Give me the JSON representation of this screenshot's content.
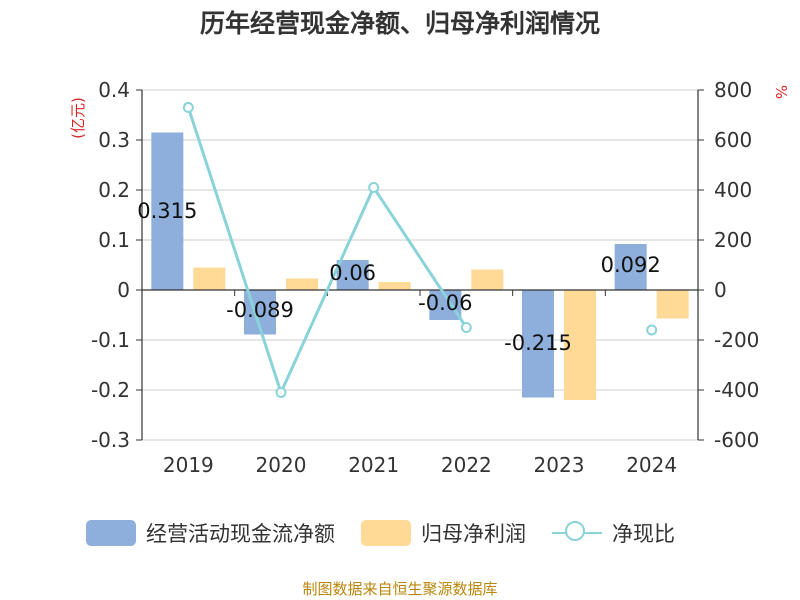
{
  "title": "历年经营现金净额、归母净利润情况",
  "source": "制图数据来自恒生聚源数据库",
  "chart_data": {
    "type": "bar",
    "categories": [
      "2019",
      "2020",
      "2021",
      "2022",
      "2023",
      "2024"
    ],
    "series": [
      {
        "name": "经营活动现金流净额",
        "kind": "bar",
        "axis": "left",
        "color": "#8eaedb",
        "values": [
          0.315,
          -0.089,
          0.06,
          -0.06,
          -0.215,
          0.092
        ],
        "labels": [
          "0.315",
          "-0.089",
          "0.06",
          "-0.06",
          "-0.215",
          "0.092"
        ]
      },
      {
        "name": "归母净利润",
        "kind": "bar",
        "axis": "left",
        "color": "#ffd996",
        "values": [
          0.045,
          0.023,
          0.016,
          0.041,
          -0.22,
          -0.057
        ]
      },
      {
        "name": "净现比",
        "kind": "line",
        "axis": "right",
        "color": "#89d3d9",
        "values": [
          730,
          -410,
          410,
          -150,
          null,
          -160
        ]
      }
    ],
    "left_axis": {
      "unit": "(亿元)",
      "ylim": [
        -0.3,
        0.4
      ],
      "ticks": [
        "-0.3",
        "-0.2",
        "-0.1",
        "0",
        "0.1",
        "0.2",
        "0.3",
        "0.4"
      ]
    },
    "right_axis": {
      "unit": "%",
      "ylim": [
        -600,
        800
      ],
      "ticks": [
        "-600",
        "-400",
        "-200",
        "0",
        "200",
        "400",
        "600",
        "800"
      ]
    },
    "grid": true,
    "legend": "bottom"
  }
}
